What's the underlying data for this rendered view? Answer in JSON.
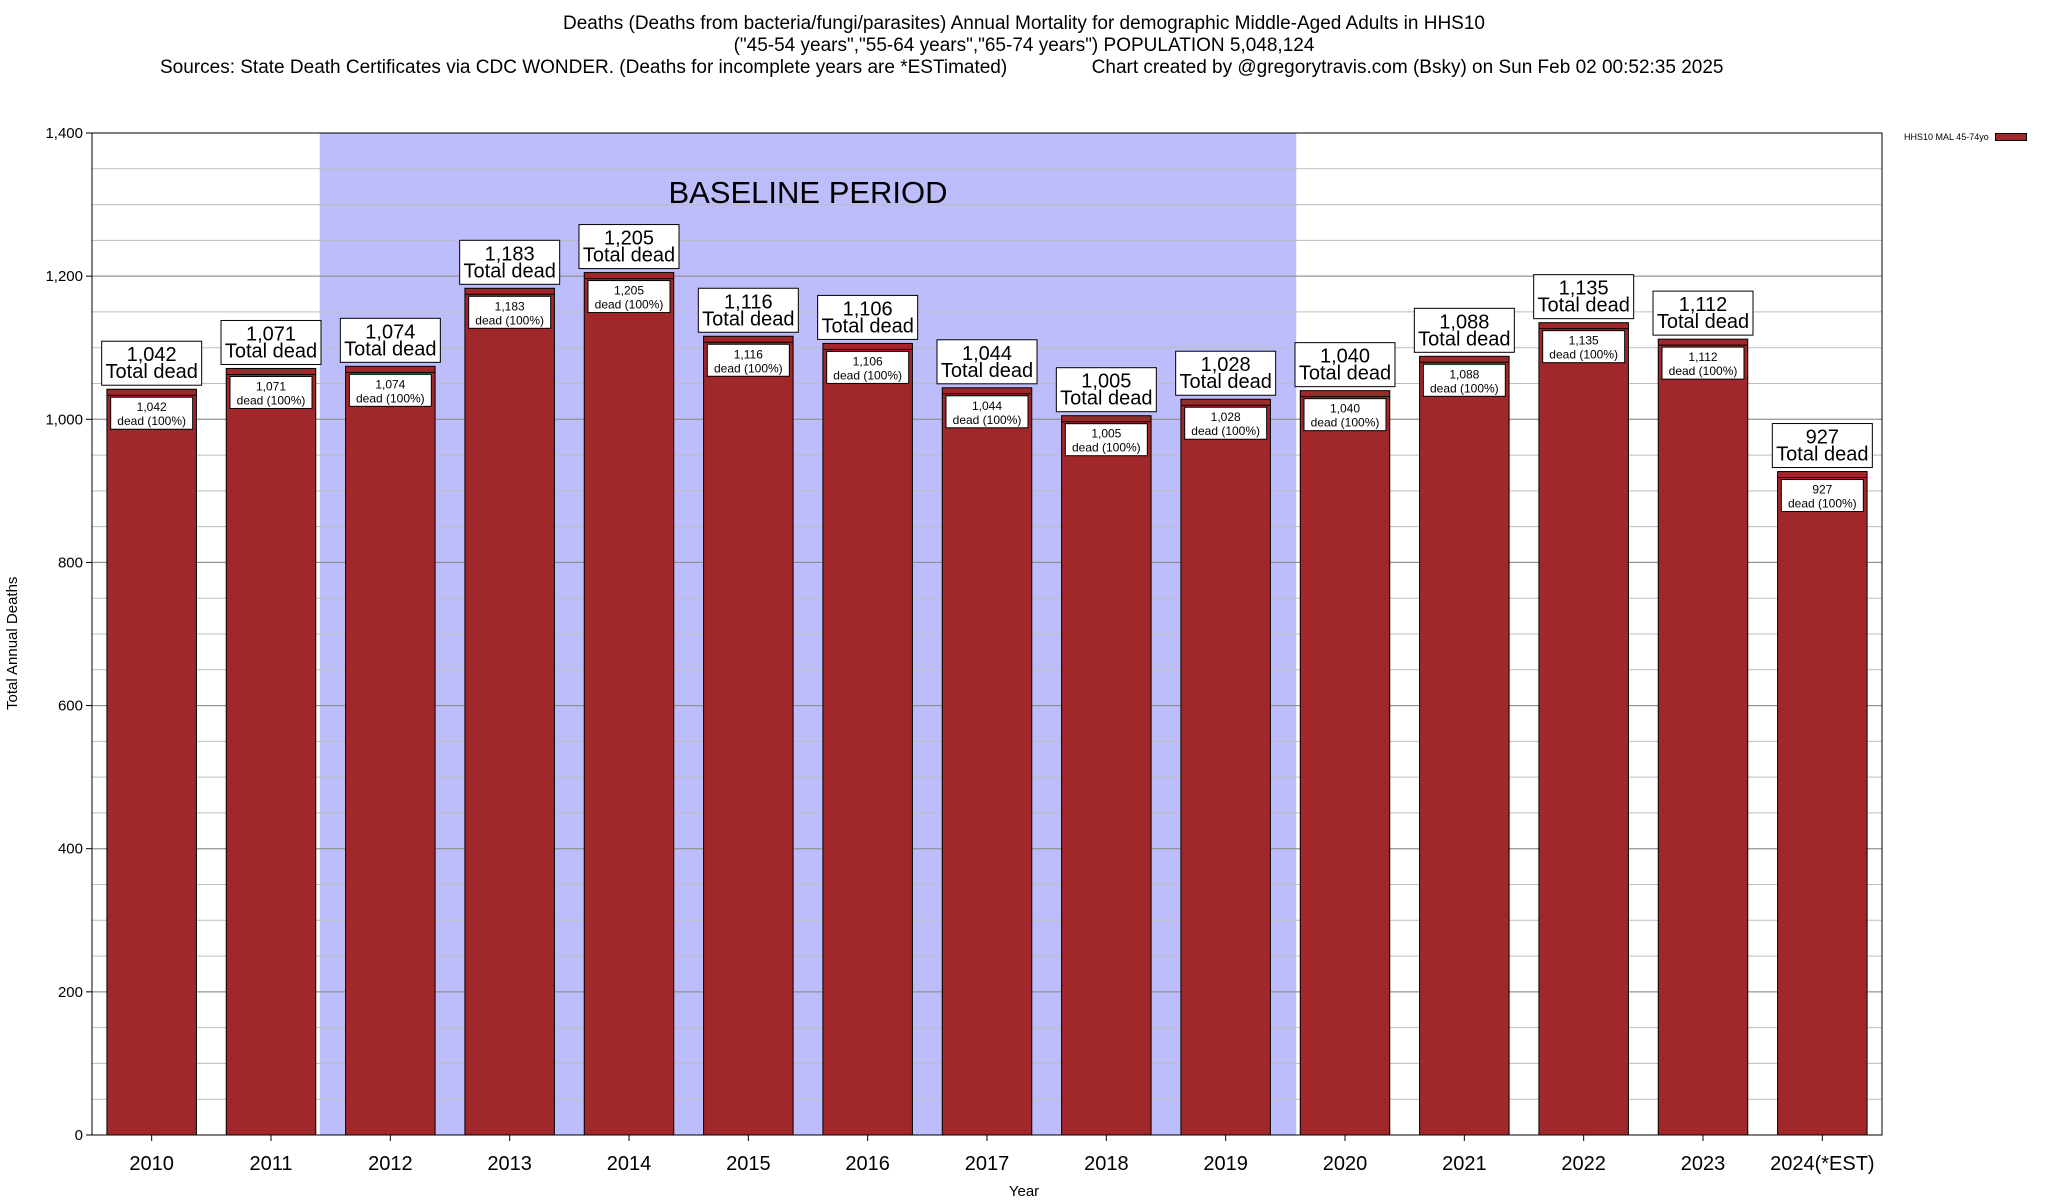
{
  "title": {
    "line1": "Deaths (Deaths from bacteria/fungi/parasites) Annual Mortality for demographic Middle-Aged Adults in HHS10",
    "line2": "(\"45-54 years\",\"55-64 years\",\"65-74 years\") POPULATION 5,048,124",
    "line3": "Sources: State Death Certificates via CDC WONDER. (Deaths for incomplete years are *ESTimated)                Chart created by @gregorytravis.com (Bsky) on Sun Feb 02 00:52:35 2025"
  },
  "chart_data": {
    "type": "bar",
    "xlabel": "Year",
    "ylabel": "Total Annual Deaths",
    "ylim": [
      0,
      1400
    ],
    "yticks": [
      0,
      200,
      400,
      600,
      800,
      1000,
      1200,
      1400
    ],
    "ytick_labels": [
      "0",
      "200",
      "400",
      "600",
      "800",
      "1,000",
      "1,200",
      "1,400"
    ],
    "minor_grid_step": 50,
    "categories": [
      "2010",
      "2011",
      "2012",
      "2013",
      "2014",
      "2015",
      "2016",
      "2017",
      "2018",
      "2019",
      "2020",
      "2021",
      "2022",
      "2023",
      "2024(*EST)"
    ],
    "series": [
      {
        "name": "HHS10 MAL 45-74yo",
        "values": [
          1042,
          1071,
          1074,
          1183,
          1205,
          1116,
          1106,
          1044,
          1005,
          1028,
          1040,
          1088,
          1135,
          1112,
          927
        ]
      }
    ],
    "total_labels": [
      "1,042",
      "1,071",
      "1,074",
      "1,183",
      "1,205",
      "1,116",
      "1,106",
      "1,044",
      "1,005",
      "1,028",
      "1,040",
      "1,088",
      "1,135",
      "1,112",
      "927"
    ],
    "total_suffix": "Total dead",
    "inner_labels": [
      "1,042",
      "1,071",
      "1,074",
      "1,183",
      "1,205",
      "1,116",
      "1,106",
      "1,044",
      "1,005",
      "1,028",
      "1,040",
      "1,088",
      "1,135",
      "1,112",
      "927"
    ],
    "inner_suffix": "dead (100%)",
    "baseline": {
      "label": "BASELINE PERIOD",
      "from": "2012",
      "to": "2019",
      "color": "#BDBDFB"
    },
    "bar_color": "#A0282A",
    "legend_position": "top-right",
    "grid": true
  }
}
